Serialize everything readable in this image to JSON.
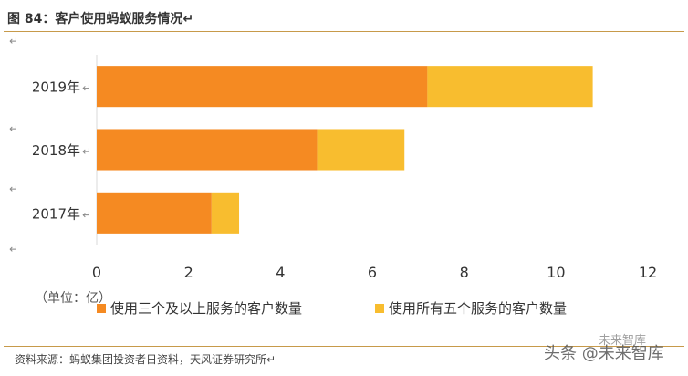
{
  "header": {
    "title": "图 84：客户使用蚂蚁服务情况↵"
  },
  "footer": {
    "source": "资料来源：蚂蚁集团投资者日资料，天风证券研究所↵"
  },
  "unit_label": "（单位：亿）",
  "paragraph_mark": "↵",
  "watermark": {
    "main": "头条 @未来智库",
    "small": "未来智库"
  },
  "colors": {
    "series1": "#f58a22",
    "series2": "#f8bd2f",
    "axis": "#d9d9d9",
    "rule": "#c79a4a"
  },
  "chart_data": {
    "type": "bar",
    "orientation": "horizontal",
    "stacked": true,
    "title": "图 84：客户使用蚂蚁服务情况",
    "categories": [
      "2019年",
      "2018年",
      "2017年"
    ],
    "series": [
      {
        "name": "使用三个及以上服务的客户数量",
        "values": [
          7.2,
          4.8,
          2.5
        ]
      },
      {
        "name": "使用所有五个服务的客户数量",
        "values": [
          3.6,
          1.9,
          0.6
        ]
      }
    ],
    "xlim": [
      0,
      12
    ],
    "xticks": [
      0,
      2,
      4,
      6,
      8,
      10,
      12
    ],
    "xunit": "亿",
    "grid": false,
    "legend_position": "bottom"
  }
}
